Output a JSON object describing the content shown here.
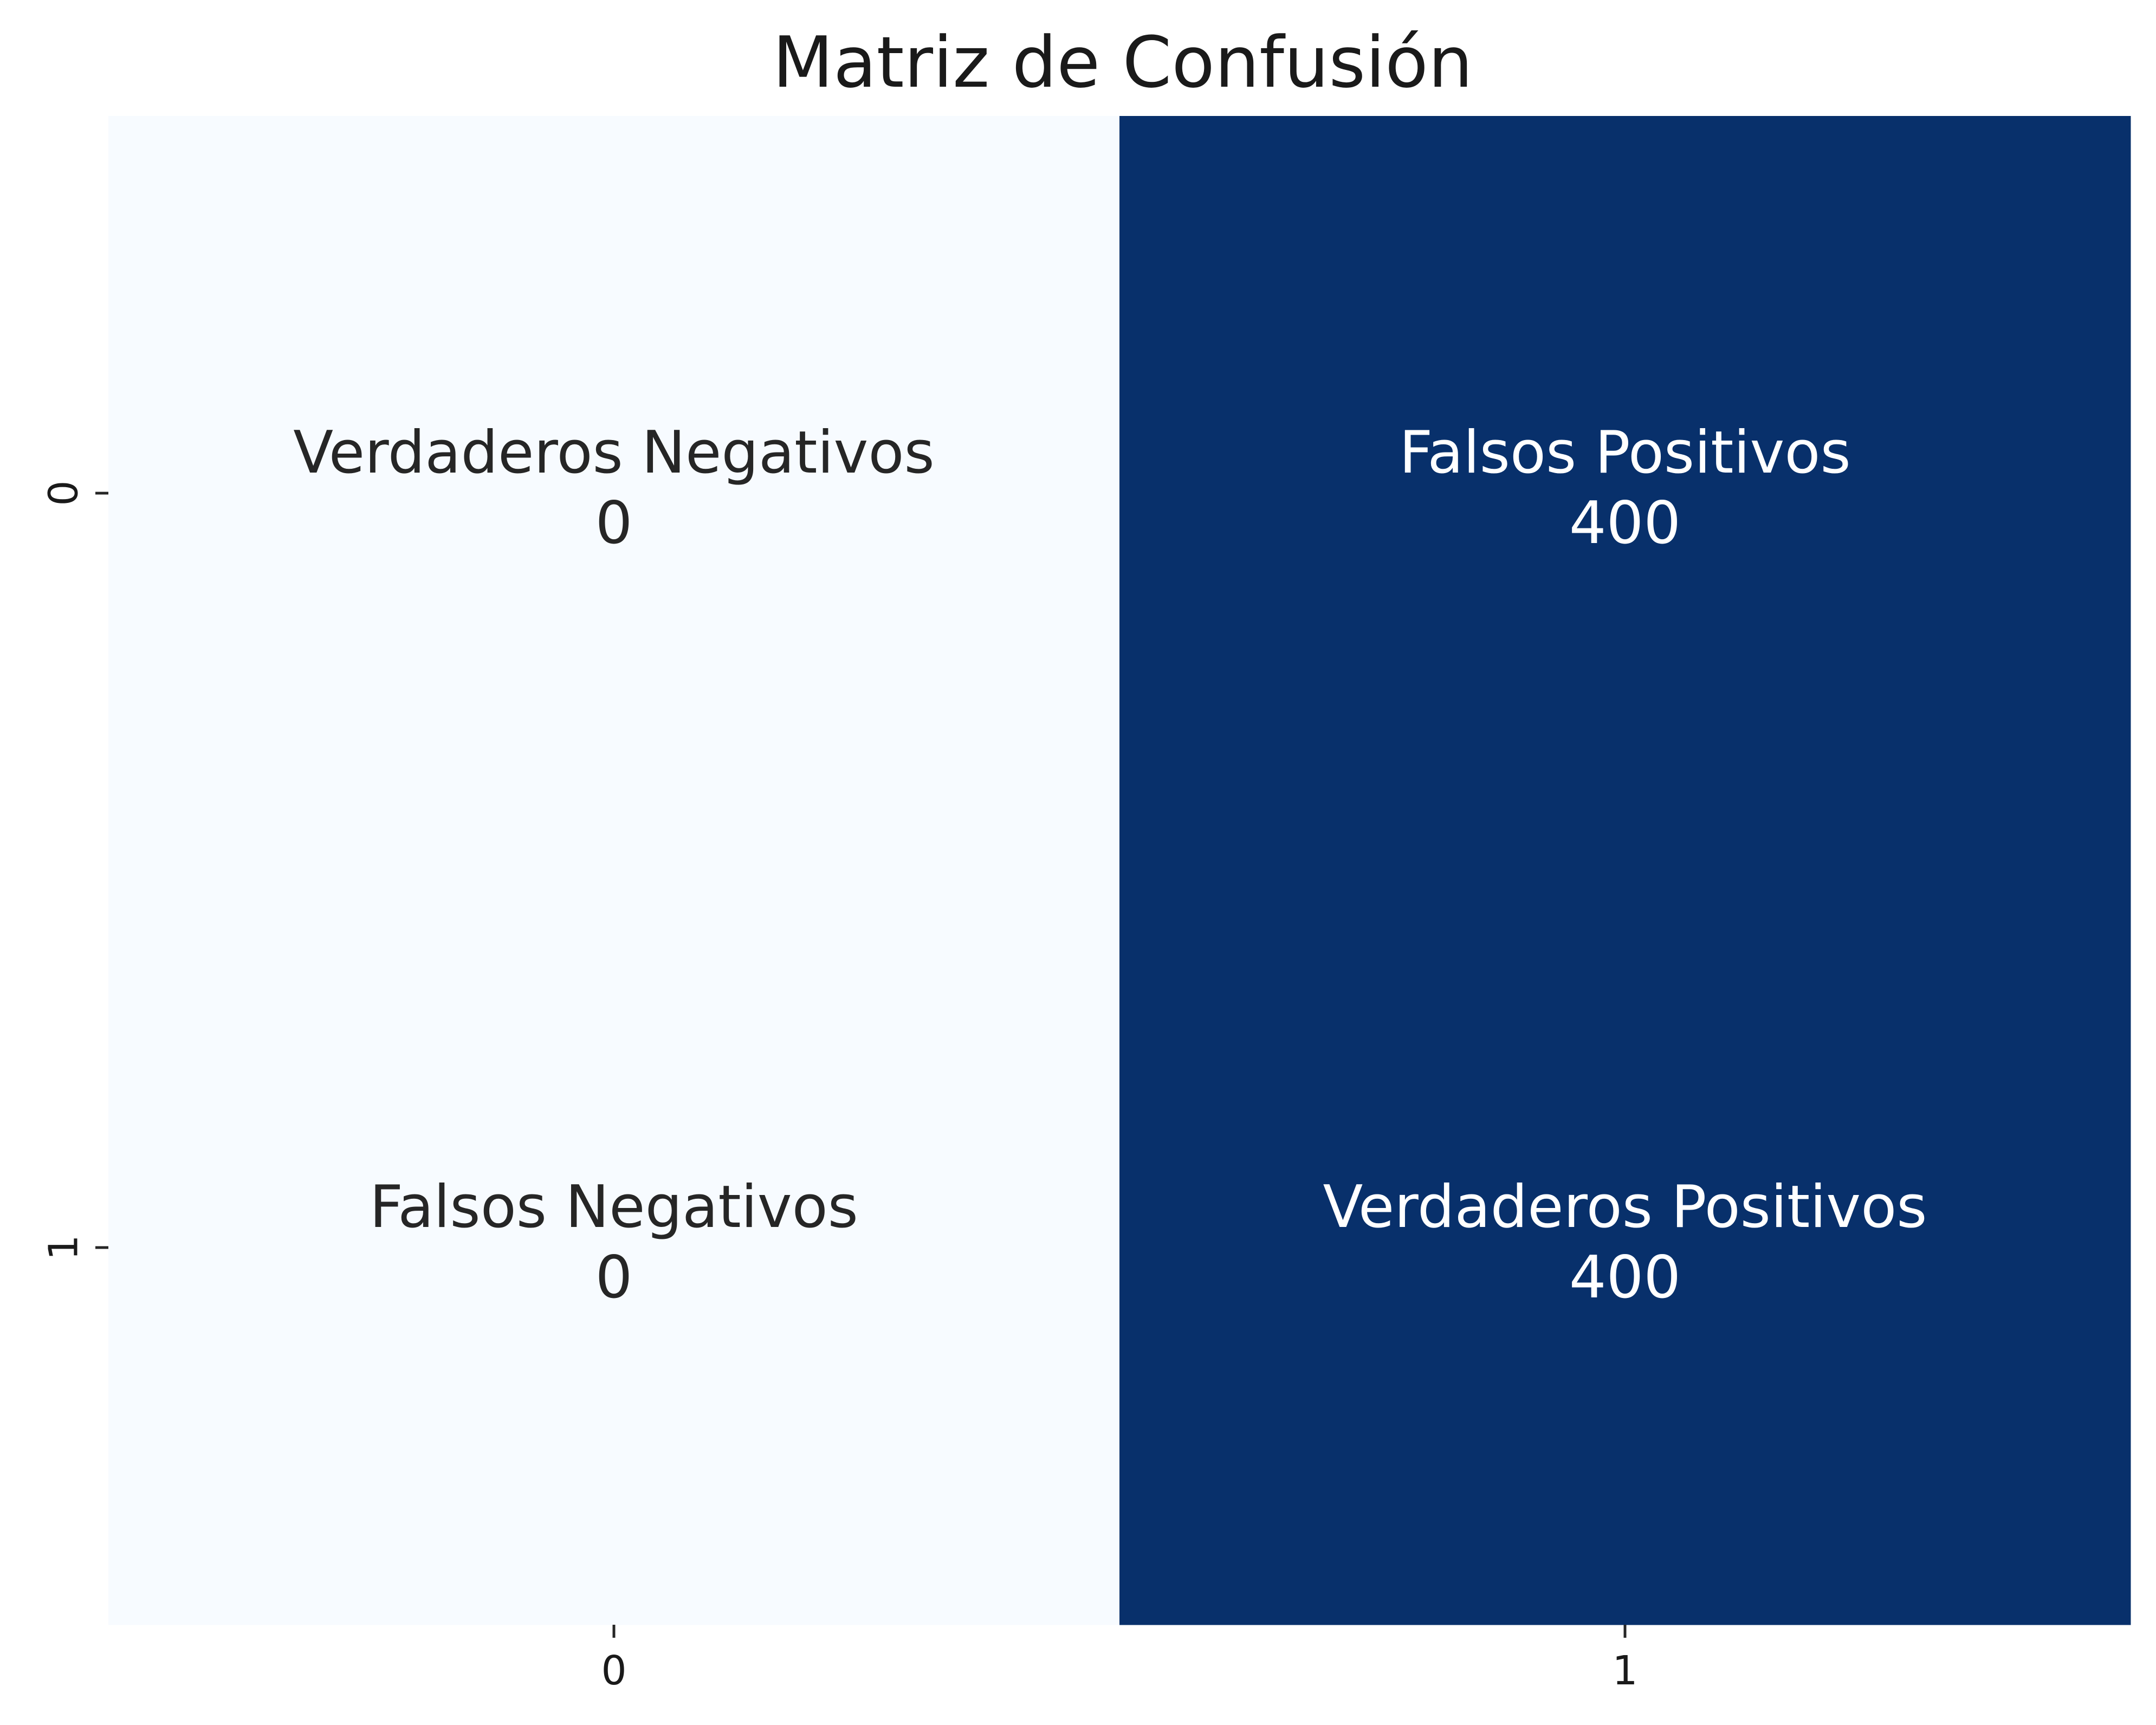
{
  "chart_data": {
    "type": "heatmap",
    "title": "Matriz de Confusión",
    "xlabel": "",
    "ylabel": "",
    "x_categories": [
      "0",
      "1"
    ],
    "y_categories": [
      "0",
      "1"
    ],
    "values": [
      [
        0,
        400
      ],
      [
        0,
        400
      ]
    ],
    "cell_labels": [
      [
        "Verdaderos Negativos",
        "Falsos Positivos"
      ],
      [
        "Falsos Negativos",
        "Verdaderos Positivos"
      ]
    ],
    "colormap": {
      "low": "#f7fbff",
      "high": "#08306b"
    },
    "colorbar": false,
    "grid": false,
    "text_colors": {
      "on_light": "#262626",
      "on_dark": "#ffffff"
    }
  }
}
